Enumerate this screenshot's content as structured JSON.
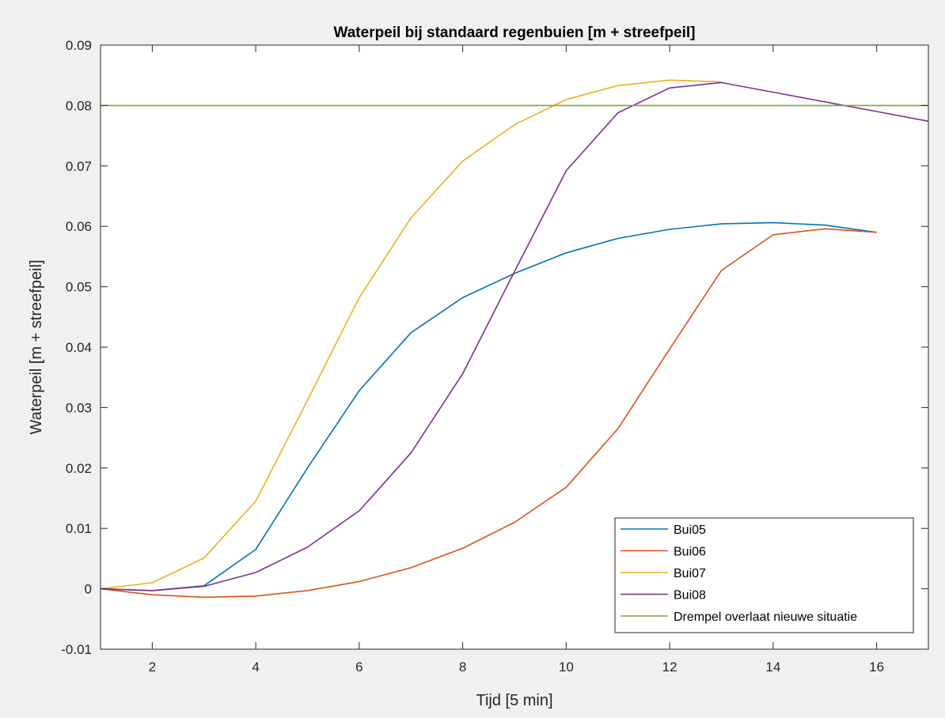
{
  "chart_data": {
    "type": "line",
    "title": "Waterpeil bij standaard regenbuien [m + streefpeil]",
    "xlabel": "Tijd [5 min]",
    "ylabel": "Waterpeil [m + streefpeil]",
    "xlim": [
      1,
      17
    ],
    "ylim": [
      -0.01,
      0.09
    ],
    "xticks": [
      2,
      4,
      6,
      8,
      10,
      12,
      14,
      16
    ],
    "xtick_labels": [
      "2",
      "4",
      "6",
      "8",
      "10",
      "12",
      "14",
      "16"
    ],
    "yticks": [
      -0.01,
      0,
      0.01,
      0.02,
      0.03,
      0.04,
      0.05,
      0.06,
      0.07,
      0.08,
      0.09
    ],
    "ytick_labels": [
      "-0.01",
      "0",
      "0.01",
      "0.02",
      "0.03",
      "0.04",
      "0.05",
      "0.06",
      "0.07",
      "0.08",
      "0.09"
    ],
    "grid": false,
    "legend_position": "bottom-right",
    "series": [
      {
        "name": "Bui05",
        "color": "#0072bd",
        "x": [
          1,
          2,
          3,
          4,
          5,
          6,
          7,
          8,
          9,
          10,
          11,
          12,
          13,
          14,
          15,
          16
        ],
        "values": [
          0,
          -0.0003,
          0.0005,
          0.0065,
          0.02,
          0.0328,
          0.0424,
          0.0482,
          0.0522,
          0.0556,
          0.058,
          0.0595,
          0.0604,
          0.0606,
          0.0602,
          0.059
        ]
      },
      {
        "name": "Bui06",
        "color": "#d95319",
        "x": [
          1,
          2,
          3,
          4,
          5,
          6,
          7,
          8,
          9,
          10,
          11,
          12,
          13,
          14,
          15,
          16
        ],
        "values": [
          0,
          -0.001,
          -0.0014,
          -0.0012,
          -0.0003,
          0.0012,
          0.0035,
          0.0067,
          0.011,
          0.0168,
          0.0265,
          0.0397,
          0.0527,
          0.0586,
          0.0596,
          0.059
        ]
      },
      {
        "name": "Bui07",
        "color": "#edb120",
        "x": [
          1,
          2,
          3,
          4,
          5,
          6,
          7,
          8,
          9,
          10,
          11,
          12,
          13
        ],
        "values": [
          0,
          0.001,
          0.0051,
          0.0145,
          0.0312,
          0.0482,
          0.0614,
          0.0708,
          0.0768,
          0.081,
          0.0833,
          0.0842,
          0.0839
        ]
      },
      {
        "name": "Bui08",
        "color": "#7e2f8e",
        "x": [
          1,
          2,
          3,
          4,
          5,
          6,
          7,
          8,
          9,
          10,
          11,
          12,
          13,
          14,
          15,
          16,
          17
        ],
        "values": [
          0,
          -0.0003,
          0.0004,
          0.0027,
          0.0069,
          0.0129,
          0.0225,
          0.0356,
          0.0525,
          0.0692,
          0.0788,
          0.0829,
          0.0838,
          0.0822,
          0.0806,
          0.079,
          0.0774
        ]
      },
      {
        "name": "Drempel overlaat nieuwe situatie",
        "color": "#77ac30",
        "x": [
          1,
          17
        ],
        "values": [
          0.08,
          0.08
        ]
      }
    ]
  }
}
